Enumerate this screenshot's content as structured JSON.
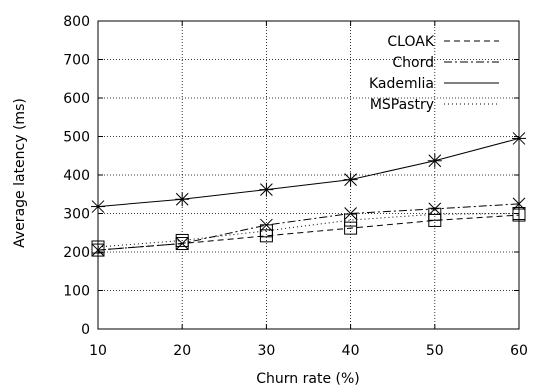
{
  "chart_data": {
    "type": "line",
    "xlabel": "Churn rate (%)",
    "ylabel": "Average latency (ms)",
    "xlim": [
      10,
      60
    ],
    "ylim": [
      0,
      800
    ],
    "x_ticks": [
      10,
      20,
      30,
      40,
      50,
      60
    ],
    "y_ticks": [
      0,
      100,
      200,
      300,
      400,
      500,
      600,
      700,
      800
    ],
    "grid": true,
    "legend_position": "top-right",
    "x": [
      10,
      20,
      30,
      40,
      50,
      60
    ],
    "series": [
      {
        "name": "CLOAK",
        "values": [
          205,
          222,
          242,
          262,
          282,
          296
        ],
        "dash": "dashed",
        "marker": "square"
      },
      {
        "name": "Chord",
        "values": [
          205,
          222,
          270,
          300,
          312,
          325
        ],
        "dash": "dash-dot",
        "marker": "x"
      },
      {
        "name": "Kademlia",
        "values": [
          318,
          337,
          362,
          388,
          437,
          495
        ],
        "dash": "solid",
        "marker": "asterisk"
      },
      {
        "name": "MSPastry",
        "values": [
          213,
          230,
          255,
          283,
          298,
          300
        ],
        "dash": "dotted",
        "marker": "square"
      }
    ]
  }
}
